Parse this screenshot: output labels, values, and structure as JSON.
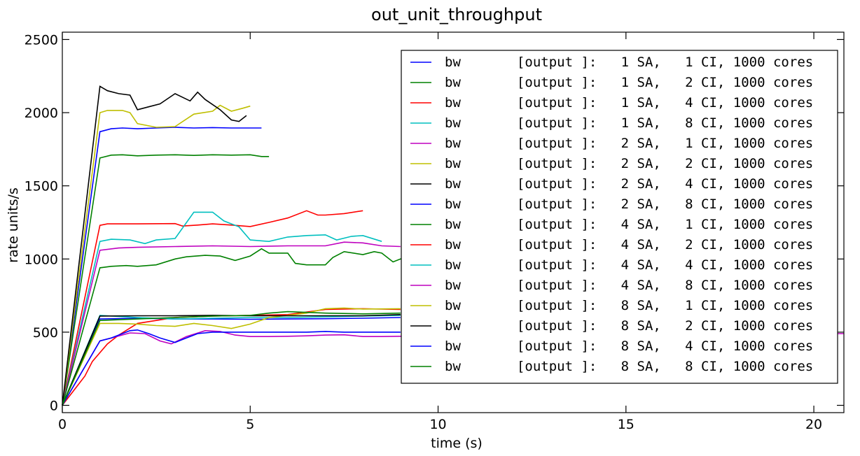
{
  "chart_data": {
    "type": "line",
    "title": "out_unit_throughput",
    "xlabel": "time (s)",
    "ylabel": "rate units/s",
    "xlim": [
      0,
      20.8
    ],
    "ylim": [
      -50,
      2550
    ],
    "xticks": [
      0,
      5,
      10,
      15,
      20
    ],
    "xtick_labels": [
      "0",
      "5",
      "10",
      "15",
      "20"
    ],
    "yticks": [
      0,
      500,
      1000,
      1500,
      2000,
      2500
    ],
    "ytick_labels": [
      "0",
      "500",
      "1000",
      "1500",
      "2000",
      "2500"
    ],
    "grid": false,
    "legend_position": "upper-right",
    "series": [
      {
        "name": "bw       [output ]:   1 SA,   1 CI, 1000 cores",
        "color": "#0000ff",
        "x": [
          0,
          1,
          1.3,
          1.6,
          2.0,
          2.5,
          3.0,
          3.5,
          4.0,
          4.5,
          5.0,
          5.3
        ],
        "y": [
          0,
          1870,
          1890,
          1895,
          1890,
          1895,
          1900,
          1895,
          1898,
          1895,
          1895,
          1895
        ]
      },
      {
        "name": "bw       [output ]:   1 SA,   2 CI, 1000 cores",
        "color": "#008000",
        "x": [
          0,
          1,
          1.3,
          1.6,
          2.0,
          2.5,
          3.0,
          3.5,
          4.0,
          4.5,
          5.0,
          5.3,
          5.5
        ],
        "y": [
          0,
          1690,
          1710,
          1712,
          1705,
          1710,
          1712,
          1708,
          1712,
          1710,
          1712,
          1700,
          1700
        ]
      },
      {
        "name": "bw       [output ]:   1 SA,   4 CI, 1000 cores",
        "color": "#ff0000",
        "x": [
          0,
          1,
          1.2,
          2.0,
          3.0,
          3.2,
          3.6,
          4.0,
          4.5,
          5.0,
          5.5,
          6.0,
          6.5,
          6.8,
          7.0,
          7.5,
          8.0
        ],
        "y": [
          0,
          1230,
          1240,
          1240,
          1242,
          1225,
          1232,
          1240,
          1232,
          1222,
          1250,
          1280,
          1330,
          1300,
          1300,
          1310,
          1330
        ]
      },
      {
        "name": "bw       [output ]:   1 SA,   8 CI, 1000 cores",
        "color": "#00bfbf",
        "x": [
          0,
          1,
          1.3,
          1.8,
          2.2,
          2.5,
          3.0,
          3.5,
          4.0,
          4.3,
          4.7,
          5.0,
          5.5,
          6.0,
          6.5,
          7.0,
          7.3,
          7.7,
          8.0,
          8.5
        ],
        "y": [
          0,
          1120,
          1135,
          1130,
          1105,
          1130,
          1140,
          1320,
          1320,
          1260,
          1220,
          1130,
          1120,
          1150,
          1160,
          1165,
          1130,
          1155,
          1160,
          1120
        ]
      },
      {
        "name": "bw       [output ]:   2 SA,   1 CI, 1000 cores",
        "color": "#bf00bf",
        "x": [
          0,
          1,
          1.5,
          2.0,
          3.0,
          4.0,
          5.0,
          6.0,
          7.0,
          7.5,
          8.0,
          8.5,
          9.0
        ],
        "y": [
          0,
          1060,
          1075,
          1080,
          1085,
          1090,
          1085,
          1090,
          1090,
          1115,
          1110,
          1090,
          1085
        ]
      },
      {
        "name": "bw       [output ]:   2 SA,   2 CI, 1000 cores",
        "color": "#bfbf00",
        "x": [
          0,
          1,
          1.2,
          1.6,
          1.8,
          2.0,
          2.5,
          3.0,
          3.5,
          4.0,
          4.2,
          4.5,
          4.8,
          5.0
        ],
        "y": [
          0,
          2000,
          2015,
          2015,
          2000,
          1925,
          1900,
          1905,
          1990,
          2010,
          2050,
          2010,
          2030,
          2045
        ]
      },
      {
        "name": "bw       [output ]:   2 SA,   4 CI, 1000 cores",
        "color": "#000000",
        "x": [
          0,
          1,
          1.2,
          1.5,
          1.8,
          2.0,
          2.3,
          2.6,
          3.0,
          3.4,
          3.6,
          3.8,
          4.2,
          4.5,
          4.7,
          4.9
        ],
        "y": [
          0,
          2180,
          2150,
          2130,
          2120,
          2020,
          2040,
          2060,
          2130,
          2080,
          2140,
          2090,
          2020,
          1950,
          1940,
          1980
        ]
      },
      {
        "name": "bw       [output ]:   2 SA,   8 CI, 1000 cores",
        "color": "#0000ff",
        "x": [
          0,
          1,
          2,
          3,
          4,
          5,
          6,
          7,
          8,
          9
        ],
        "y": [
          0,
          590,
          595,
          590,
          590,
          588,
          590,
          592,
          595,
          600
        ]
      },
      {
        "name": "bw       [output ]:   4 SA,   1 CI, 1000 cores",
        "color": "#008000",
        "x": [
          0,
          1,
          1.3,
          1.7,
          2.0,
          2.5,
          3.0,
          3.3,
          3.8,
          4.2,
          4.6,
          5.0,
          5.3,
          5.5,
          6.0,
          6.2,
          6.5,
          7.0,
          7.2,
          7.5,
          8.0,
          8.3,
          8.5,
          8.8,
          9.0,
          9.2
        ],
        "y": [
          0,
          940,
          950,
          955,
          950,
          960,
          1000,
          1015,
          1025,
          1020,
          990,
          1020,
          1070,
          1040,
          1040,
          970,
          960,
          960,
          1010,
          1050,
          1030,
          1050,
          1040,
          980,
          1000,
          1010
        ]
      },
      {
        "name": "bw       [output ]:   4 SA,   2 CI, 1000 cores",
        "color": "#ff0000",
        "x": [
          0,
          0.3,
          0.6,
          0.8,
          1.2,
          1.5,
          2.0,
          2.5,
          3.0,
          4.0,
          5.0,
          6.0,
          7.0,
          8.0,
          9.0
        ],
        "y": [
          0,
          100,
          200,
          300,
          420,
          480,
          560,
          580,
          600,
          610,
          615,
          620,
          655,
          660,
          655
        ]
      },
      {
        "name": "bw       [output ]:   4 SA,   4 CI, 1000 cores",
        "color": "#00bfbf",
        "x": [
          0,
          1,
          2,
          3,
          4,
          5,
          6,
          7,
          8,
          9
        ],
        "y": [
          0,
          615,
          600,
          590,
          595,
          600,
          600,
          605,
          610,
          615
        ]
      },
      {
        "name": "bw       [output ]:   4 SA,   8 CI, 1000 cores",
        "color": "#bf00bf",
        "x": [
          0,
          1,
          1.3,
          1.8,
          2.2,
          2.6,
          2.9,
          3.3,
          3.8,
          4.2,
          4.6,
          5.0,
          5.5,
          6.0,
          6.5,
          7.0,
          7.5,
          8.0,
          8.5,
          9.0,
          20.2,
          20.8
        ],
        "y": [
          0,
          440,
          460,
          495,
          490,
          440,
          420,
          470,
          510,
          505,
          480,
          470,
          470,
          472,
          475,
          480,
          482,
          470,
          470,
          472,
          490,
          490
        ]
      },
      {
        "name": "bw       [output ]:   8 SA,   1 CI, 1000 cores",
        "color": "#bfbf00",
        "x": [
          0,
          1,
          1.5,
          2.0,
          2.5,
          3.0,
          3.5,
          4.0,
          4.5,
          5.0,
          5.5,
          6.0,
          6.5,
          7.0,
          7.5,
          8.0,
          9.0
        ],
        "y": [
          0,
          560,
          560,
          555,
          545,
          540,
          560,
          545,
          525,
          555,
          600,
          615,
          630,
          660,
          665,
          658,
          660
        ]
      },
      {
        "name": "bw       [output ]:   8 SA,   2 CI, 1000 cores",
        "color": "#000000",
        "x": [
          0,
          1,
          2,
          3,
          4,
          5,
          6,
          7,
          8,
          9
        ],
        "y": [
          0,
          610,
          612,
          612,
          615,
          612,
          612,
          612,
          612,
          620
        ]
      },
      {
        "name": "bw       [output ]:   8 SA,   4 CI, 1000 cores",
        "color": "#0000ff",
        "x": [
          0,
          1,
          1.3,
          1.6,
          1.8,
          2.0,
          2.3,
          2.6,
          3.0,
          3.3,
          3.6,
          4.0,
          4.5,
          5.0,
          5.5,
          6.0,
          6.5,
          7.0,
          7.5,
          8.0,
          8.5,
          9.0
        ],
        "y": [
          0,
          440,
          460,
          490,
          510,
          515,
          490,
          460,
          430,
          460,
          490,
          500,
          500,
          500,
          500,
          500,
          500,
          505,
          500,
          500,
          500,
          500
        ]
      },
      {
        "name": "bw       [output ]:   8 SA,   8 CI, 1000 cores",
        "color": "#008000",
        "x": [
          0,
          1,
          2,
          3,
          4,
          5,
          5.5,
          6,
          7,
          8,
          9
        ],
        "y": [
          0,
          580,
          590,
          600,
          610,
          615,
          630,
          640,
          630,
          625,
          630
        ]
      }
    ]
  }
}
